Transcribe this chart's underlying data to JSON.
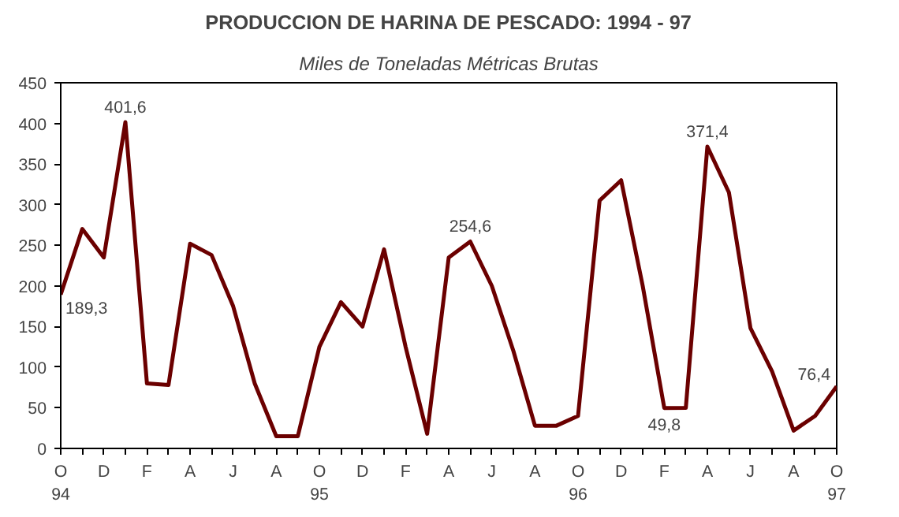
{
  "chart_data": {
    "type": "line",
    "title": "PRODUCCION DE HARINA DE PESCADO: 1994 - 97",
    "subtitle": "Miles de Toneladas Métricas Brutas",
    "categories": [
      "O\n94",
      null,
      "D",
      null,
      "F",
      null,
      "A",
      null,
      "J",
      null,
      "A",
      null,
      "O\n95",
      null,
      "D",
      null,
      "F",
      null,
      "A",
      null,
      "J",
      null,
      "A",
      null,
      "O\n96",
      null,
      "D",
      null,
      "F",
      null,
      "A",
      null,
      "J",
      null,
      "A",
      null,
      "O\n97"
    ],
    "series": [
      {
        "color": "#6b0000",
        "values": [
          189.3,
          270,
          235,
          401.6,
          80,
          78,
          252,
          238,
          175,
          80,
          15,
          15,
          125,
          180,
          150,
          245,
          125,
          18,
          235,
          254.6,
          200,
          120,
          28,
          28,
          40,
          305,
          330,
          200,
          49.8,
          50,
          371.4,
          315,
          148,
          95,
          22,
          40,
          76.4
        ],
        "value_labels": [
          "189,3",
          null,
          null,
          "401,6",
          null,
          null,
          null,
          null,
          null,
          null,
          null,
          null,
          null,
          null,
          null,
          null,
          null,
          null,
          null,
          "254,6",
          null,
          null,
          null,
          null,
          null,
          null,
          null,
          null,
          "49,8",
          null,
          "371,4",
          null,
          null,
          null,
          null,
          null,
          "76,4"
        ]
      }
    ],
    "ylim": [
      0,
      450
    ],
    "yticks": [
      0,
      50,
      100,
      150,
      200,
      250,
      300,
      350,
      400,
      450
    ],
    "grid": false,
    "marker": "none",
    "line_style": "solid"
  }
}
